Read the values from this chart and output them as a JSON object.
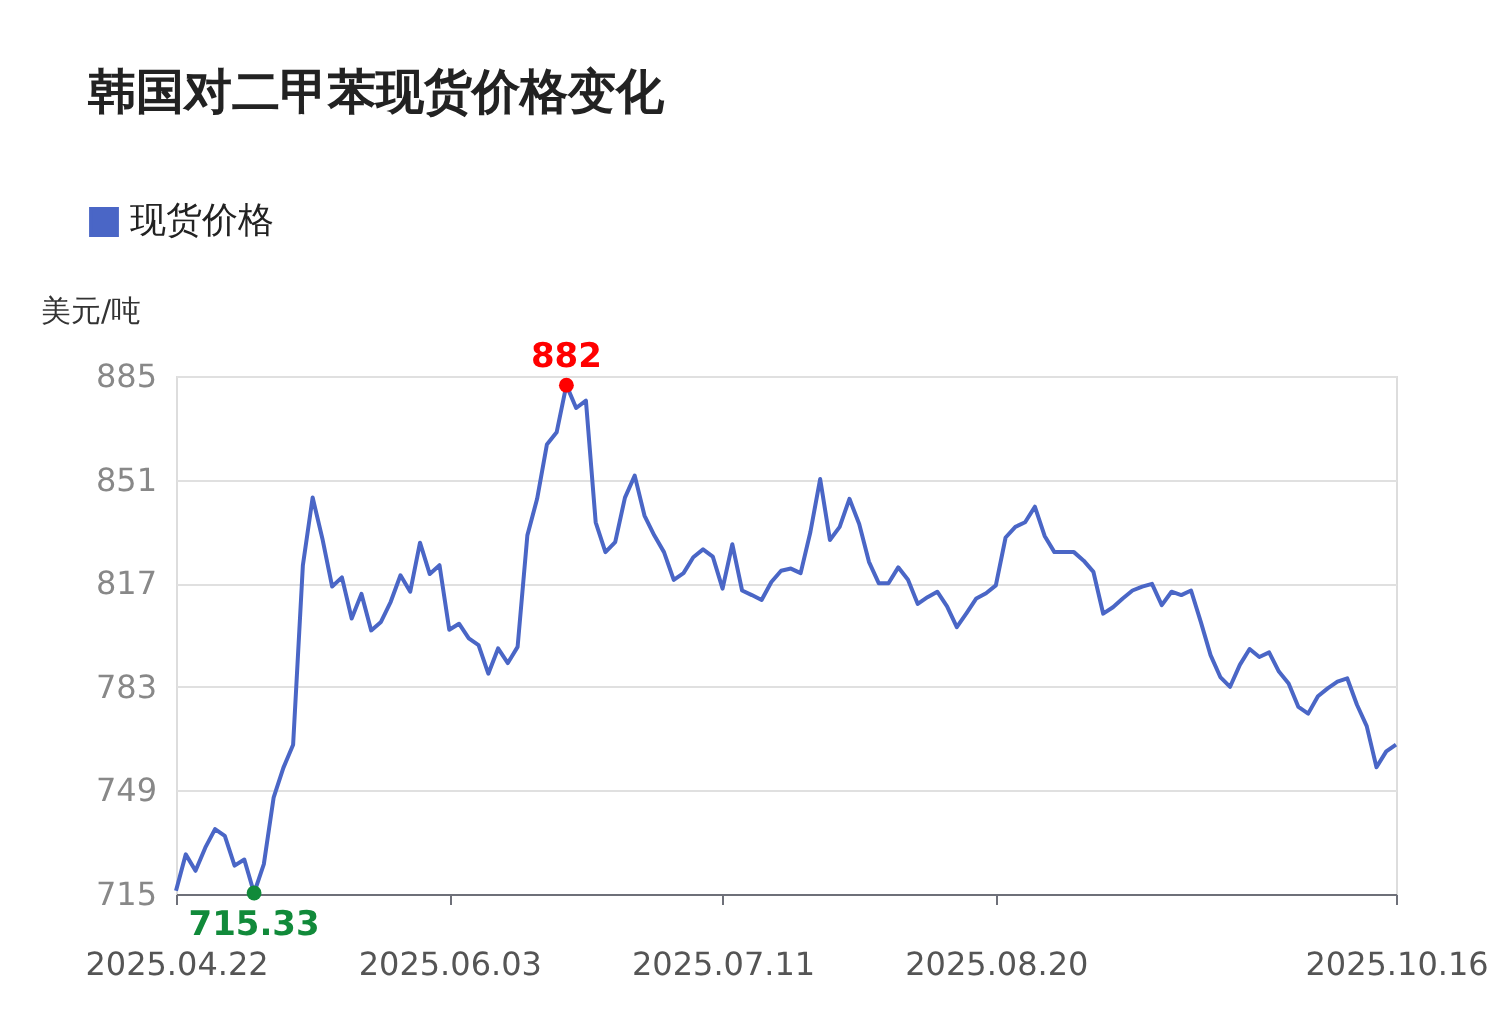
{
  "chart_data": {
    "type": "line",
    "title": "韩国对二甲苯现货价格变化",
    "ylabel": "美元/吨",
    "categories": [
      "2025.04.22",
      null,
      null,
      null,
      null,
      null,
      null,
      null,
      null,
      null,
      null,
      null,
      null,
      null,
      null,
      null,
      null,
      null,
      null,
      null,
      null,
      null,
      null,
      null,
      null,
      null,
      null,
      null,
      "2025.06.03",
      null,
      null,
      null,
      null,
      null,
      null,
      null,
      null,
      null,
      null,
      null,
      null,
      null,
      null,
      null,
      null,
      null,
      null,
      null,
      null,
      null,
      null,
      null,
      null,
      null,
      null,
      null,
      "2025.07.11",
      null,
      null,
      null,
      null,
      null,
      null,
      null,
      null,
      null,
      null,
      null,
      null,
      null,
      null,
      null,
      null,
      null,
      null,
      null,
      null,
      null,
      null,
      null,
      null,
      null,
      null,
      null,
      "2025.08.20",
      null,
      null,
      null,
      null,
      null,
      null,
      null,
      null,
      null,
      null,
      null,
      null,
      null,
      null,
      null,
      null,
      null,
      null,
      null,
      null,
      null,
      null,
      null,
      null,
      null,
      null,
      null,
      null,
      null,
      null,
      null,
      null,
      null,
      null,
      null,
      null,
      null,
      null,
      null,
      null,
      "2025.10.16"
    ],
    "series": [
      {
        "name": "现货价格",
        "color": "#4a66c6",
        "values": [
          716.1,
          728.0,
          722.6,
          730.2,
          736.3,
          734.1,
          724.3,
          726.3,
          715.33,
          724.8,
          746.6,
          756.4,
          764.0,
          822.9,
          845.1,
          831.6,
          815.9,
          818.9,
          805.4,
          813.5,
          801.5,
          804.3,
          810.9,
          819.6,
          814.2,
          830.3,
          820.0,
          822.9,
          801.7,
          803.7,
          798.9,
          796.7,
          787.3,
          795.6,
          790.8,
          796.1,
          832.7,
          844.7,
          862.5,
          866.5,
          882,
          874.5,
          876.9,
          837.0,
          827.2,
          830.5,
          845.1,
          852.3,
          839.2,
          832.7,
          827.2,
          818.1,
          820.3,
          825.5,
          828.1,
          825.7,
          815.2,
          829.8,
          814.6,
          813.1,
          811.5,
          817.4,
          821.1,
          821.8,
          820.3,
          833.8,
          851.2,
          831.2,
          835.5,
          844.7,
          836.4,
          824.0,
          817.0,
          817.0,
          822.2,
          818.1,
          810.2,
          812.4,
          814.2,
          809.4,
          802.6,
          807.2,
          812.0,
          813.7,
          816.3,
          832.0,
          835.5,
          837.0,
          842.1,
          832.5,
          827.2,
          827.2,
          827.2,
          824.4,
          820.7,
          807.0,
          809.1,
          812.0,
          814.6,
          815.9,
          816.8,
          809.8,
          814.2,
          813.1,
          814.6,
          804.3,
          793.4,
          786.2,
          783.0,
          790.2,
          795.4,
          792.8,
          794.3,
          788.0,
          784.1,
          776.4,
          774.2,
          779.9,
          782.5,
          784.7,
          785.8,
          777.1,
          770.1,
          756.6,
          761.8,
          764.0
        ]
      }
    ],
    "ylim": [
      715,
      885
    ],
    "yticks": [
      715,
      749,
      783,
      817,
      851,
      885
    ],
    "grid": "y",
    "legend": "top left",
    "marker": "none",
    "line_style": "solid",
    "annotations": [
      {
        "text": "882",
        "y": 882
      },
      {
        "text": "715.33",
        "y": 715.33
      }
    ]
  }
}
